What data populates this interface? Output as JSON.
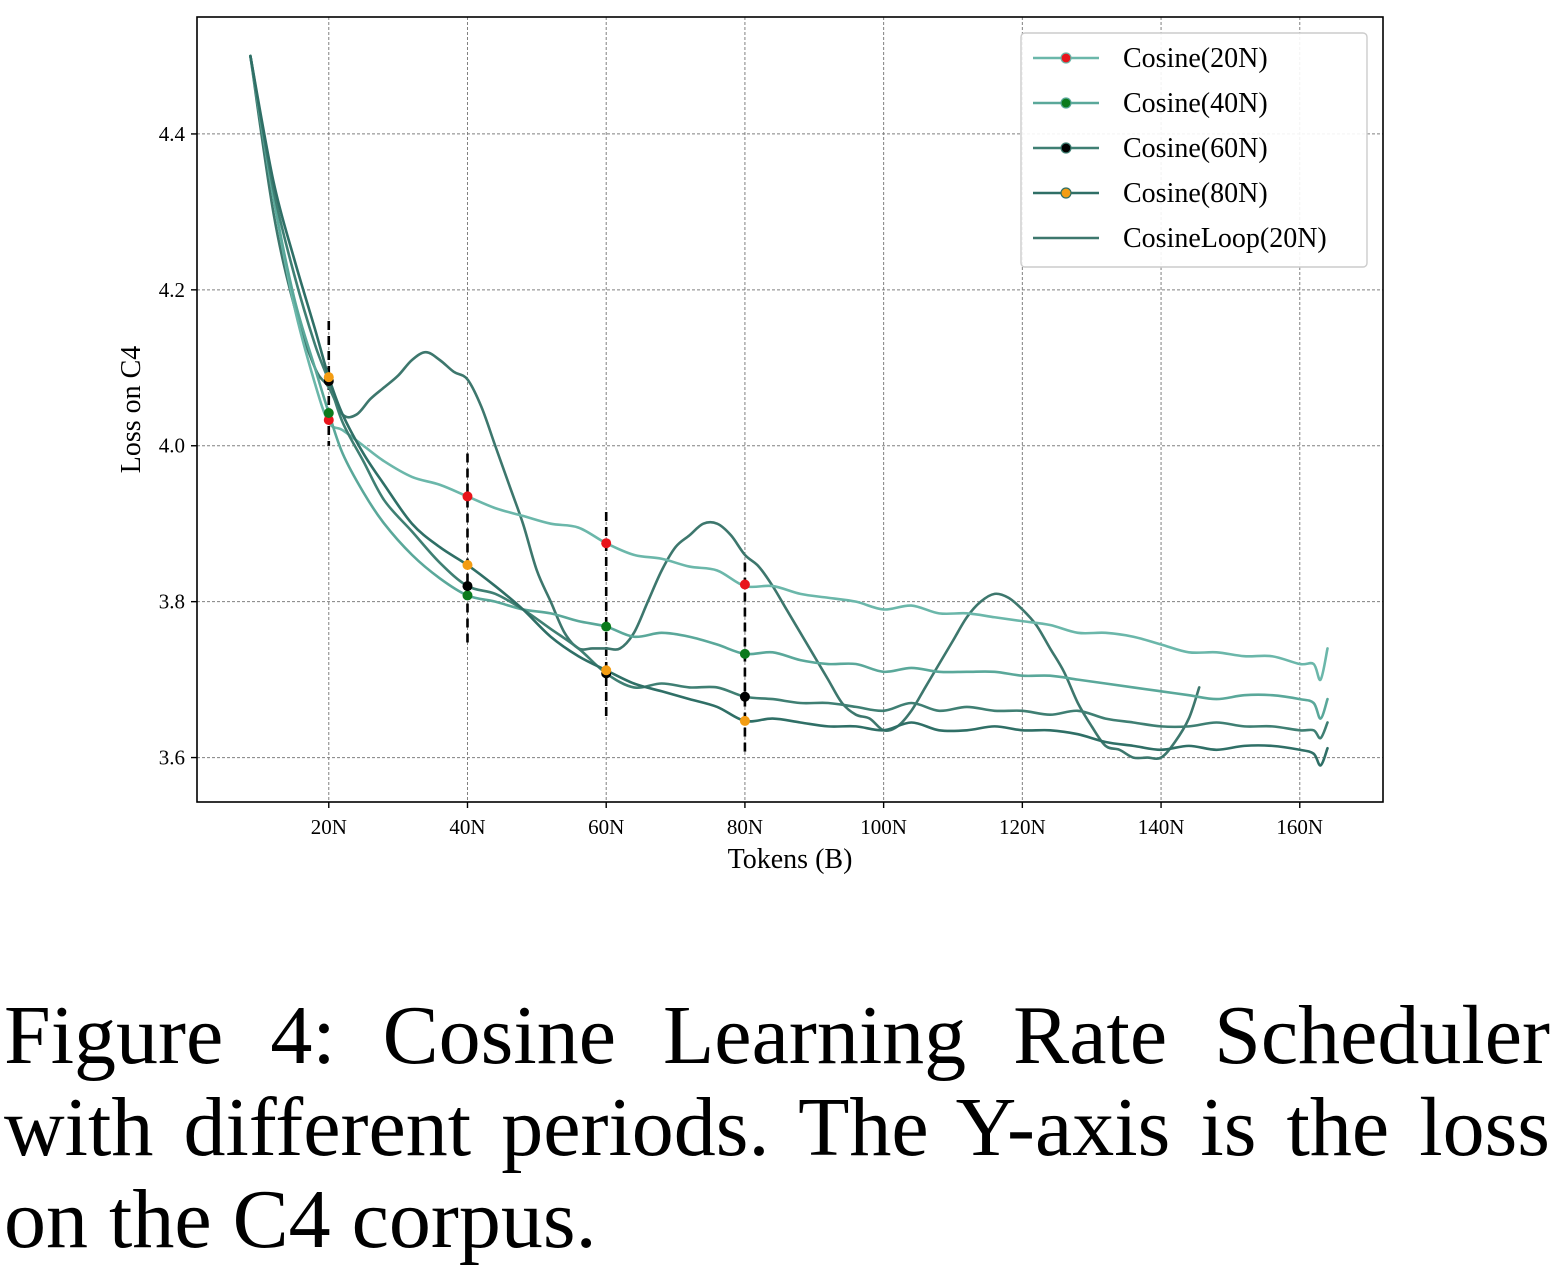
{
  "chart_data": {
    "type": "line",
    "title": "",
    "xlabel": "Tokens (B)",
    "ylabel": "Loss on C4",
    "xlim": [
      1,
      172
    ],
    "ylim": [
      3.543,
      4.55
    ],
    "xticks": [
      20,
      40,
      60,
      80,
      100,
      120,
      140,
      160
    ],
    "xtick_labels": [
      "20N",
      "40N",
      "60N",
      "80N",
      "100N",
      "120N",
      "140N",
      "160N"
    ],
    "yticks": [
      3.6,
      3.8,
      4.0,
      4.2,
      4.4
    ],
    "ytick_labels": [
      "3.6",
      "3.8",
      "4.0",
      "4.2",
      "4.4"
    ],
    "grid": true,
    "legend_position": "top-right",
    "series": [
      {
        "name": "Cosine(20N)",
        "color": "#6bb7aa",
        "marker_color": "#e8141b",
        "x": [
          8.7,
          12,
          15,
          18,
          20,
          22,
          25,
          28,
          32,
          36,
          40,
          44,
          48,
          52,
          56,
          60,
          64,
          68,
          72,
          76,
          80,
          84,
          88,
          92,
          96,
          100,
          104,
          108,
          112,
          116,
          120,
          124,
          128,
          132,
          136,
          140,
          144,
          148,
          152,
          156,
          160,
          162,
          163,
          164
        ],
        "y": [
          4.5,
          4.32,
          4.18,
          4.08,
          4.03,
          4.02,
          4.0,
          3.98,
          3.96,
          3.95,
          3.935,
          3.92,
          3.91,
          3.9,
          3.895,
          3.875,
          3.86,
          3.855,
          3.845,
          3.84,
          3.82,
          3.82,
          3.81,
          3.805,
          3.8,
          3.79,
          3.795,
          3.785,
          3.785,
          3.78,
          3.775,
          3.77,
          3.76,
          3.76,
          3.755,
          3.745,
          3.735,
          3.735,
          3.73,
          3.73,
          3.72,
          3.72,
          3.7,
          3.74
        ],
        "markers": [
          [
            20,
            4.033
          ],
          [
            40,
            3.935
          ],
          [
            60,
            3.875
          ],
          [
            80,
            3.822
          ]
        ]
      },
      {
        "name": "Cosine(40N)",
        "color": "#5aa89a",
        "marker_color": "#0b7a1c",
        "x": [
          8.7,
          12,
          15,
          18,
          20,
          22,
          25,
          28,
          32,
          36,
          40,
          44,
          48,
          52,
          56,
          60,
          64,
          68,
          72,
          76,
          80,
          84,
          88,
          92,
          96,
          100,
          104,
          108,
          112,
          116,
          120,
          124,
          128,
          132,
          136,
          140,
          144,
          148,
          152,
          156,
          160,
          162,
          163,
          164
        ],
        "y": [
          4.5,
          4.32,
          4.19,
          4.1,
          4.042,
          3.99,
          3.94,
          3.9,
          3.86,
          3.83,
          3.808,
          3.8,
          3.79,
          3.785,
          3.775,
          3.768,
          3.755,
          3.76,
          3.755,
          3.745,
          3.733,
          3.735,
          3.725,
          3.72,
          3.72,
          3.71,
          3.715,
          3.71,
          3.71,
          3.71,
          3.705,
          3.705,
          3.7,
          3.695,
          3.69,
          3.685,
          3.68,
          3.675,
          3.68,
          3.68,
          3.675,
          3.67,
          3.65,
          3.675
        ],
        "markers": [
          [
            20,
            4.042
          ],
          [
            40,
            3.808
          ],
          [
            60,
            3.768
          ],
          [
            80,
            3.733
          ]
        ]
      },
      {
        "name": "Cosine(60N)",
        "color": "#3f7f73",
        "marker_color": "#000000",
        "x": [
          8.7,
          12,
          15,
          18,
          20,
          22,
          25,
          28,
          32,
          36,
          40,
          44,
          48,
          52,
          56,
          60,
          64,
          68,
          72,
          76,
          80,
          84,
          88,
          92,
          96,
          100,
          104,
          108,
          112,
          116,
          120,
          124,
          128,
          132,
          136,
          140,
          144,
          148,
          152,
          156,
          160,
          162,
          163,
          164
        ],
        "y": [
          4.5,
          4.33,
          4.22,
          4.13,
          4.083,
          4.03,
          3.98,
          3.93,
          3.89,
          3.85,
          3.82,
          3.81,
          3.79,
          3.765,
          3.74,
          3.708,
          3.69,
          3.695,
          3.69,
          3.69,
          3.678,
          3.675,
          3.67,
          3.67,
          3.665,
          3.66,
          3.67,
          3.66,
          3.665,
          3.66,
          3.66,
          3.655,
          3.66,
          3.65,
          3.645,
          3.64,
          3.64,
          3.645,
          3.64,
          3.64,
          3.635,
          3.635,
          3.625,
          3.645
        ],
        "markers": [
          [
            20,
            4.083
          ],
          [
            40,
            3.82
          ],
          [
            60,
            3.708
          ],
          [
            80,
            3.678
          ]
        ]
      },
      {
        "name": "Cosine(80N)",
        "color": "#2f6f66",
        "marker_color": "#f39c12",
        "x": [
          8.7,
          12,
          15,
          18,
          20,
          22,
          25,
          28,
          32,
          36,
          40,
          44,
          48,
          52,
          56,
          60,
          64,
          68,
          72,
          76,
          80,
          84,
          88,
          92,
          96,
          100,
          104,
          108,
          112,
          116,
          120,
          124,
          128,
          132,
          136,
          140,
          144,
          148,
          152,
          156,
          160,
          162,
          163,
          164
        ],
        "y": [
          4.5,
          4.34,
          4.24,
          4.15,
          4.088,
          4.04,
          3.99,
          3.95,
          3.9,
          3.87,
          3.847,
          3.82,
          3.79,
          3.755,
          3.73,
          3.712,
          3.695,
          3.685,
          3.675,
          3.665,
          3.647,
          3.65,
          3.645,
          3.64,
          3.64,
          3.635,
          3.645,
          3.635,
          3.635,
          3.64,
          3.635,
          3.635,
          3.63,
          3.62,
          3.615,
          3.61,
          3.615,
          3.61,
          3.615,
          3.615,
          3.61,
          3.605,
          3.59,
          3.612
        ],
        "markers": [
          [
            20,
            4.088
          ],
          [
            40,
            3.847
          ],
          [
            60,
            3.712
          ],
          [
            80,
            3.647
          ]
        ]
      },
      {
        "name": "CosineLoop(20N)",
        "color": "#3d776d",
        "x": [
          8.7,
          12,
          15,
          18,
          20,
          22,
          24,
          26,
          28,
          30,
          32,
          34,
          36,
          38,
          40,
          42,
          44,
          46,
          48,
          50,
          52,
          54,
          56,
          58,
          60,
          62,
          64,
          66,
          68,
          70,
          72,
          74,
          76,
          78,
          80,
          82,
          84,
          86,
          88,
          90,
          92,
          94,
          96,
          98,
          100,
          102,
          104,
          106,
          108,
          110,
          112,
          114,
          116,
          118,
          120,
          122,
          124,
          126,
          128,
          130,
          132,
          134,
          136,
          138,
          140,
          142,
          144,
          145.5
        ],
        "y": [
          4.5,
          4.3,
          4.18,
          4.1,
          4.075,
          4.04,
          4.04,
          4.06,
          4.075,
          4.09,
          4.11,
          4.12,
          4.11,
          4.095,
          4.085,
          4.05,
          4.0,
          3.95,
          3.9,
          3.84,
          3.8,
          3.76,
          3.74,
          3.74,
          3.74,
          3.74,
          3.76,
          3.8,
          3.84,
          3.87,
          3.885,
          3.9,
          3.9,
          3.885,
          3.86,
          3.845,
          3.82,
          3.79,
          3.76,
          3.73,
          3.7,
          3.67,
          3.655,
          3.65,
          3.635,
          3.64,
          3.66,
          3.69,
          3.72,
          3.75,
          3.78,
          3.8,
          3.81,
          3.805,
          3.79,
          3.77,
          3.74,
          3.71,
          3.67,
          3.64,
          3.615,
          3.61,
          3.6,
          3.6,
          3.6,
          3.62,
          3.65,
          3.69
        ]
      }
    ],
    "vertical_markers": [
      {
        "x": 20,
        "y_range": [
          4.0,
          4.16
        ]
      },
      {
        "x": 40,
        "y_range": [
          3.745,
          3.99
        ]
      },
      {
        "x": 60,
        "y_range": [
          3.65,
          3.915
        ]
      },
      {
        "x": 80,
        "y_range": [
          3.6,
          3.85
        ]
      }
    ]
  },
  "caption": "Figure 4: Cosine Learning Rate Scheduler with different periods. The Y-axis is the loss on the C4 corpus."
}
